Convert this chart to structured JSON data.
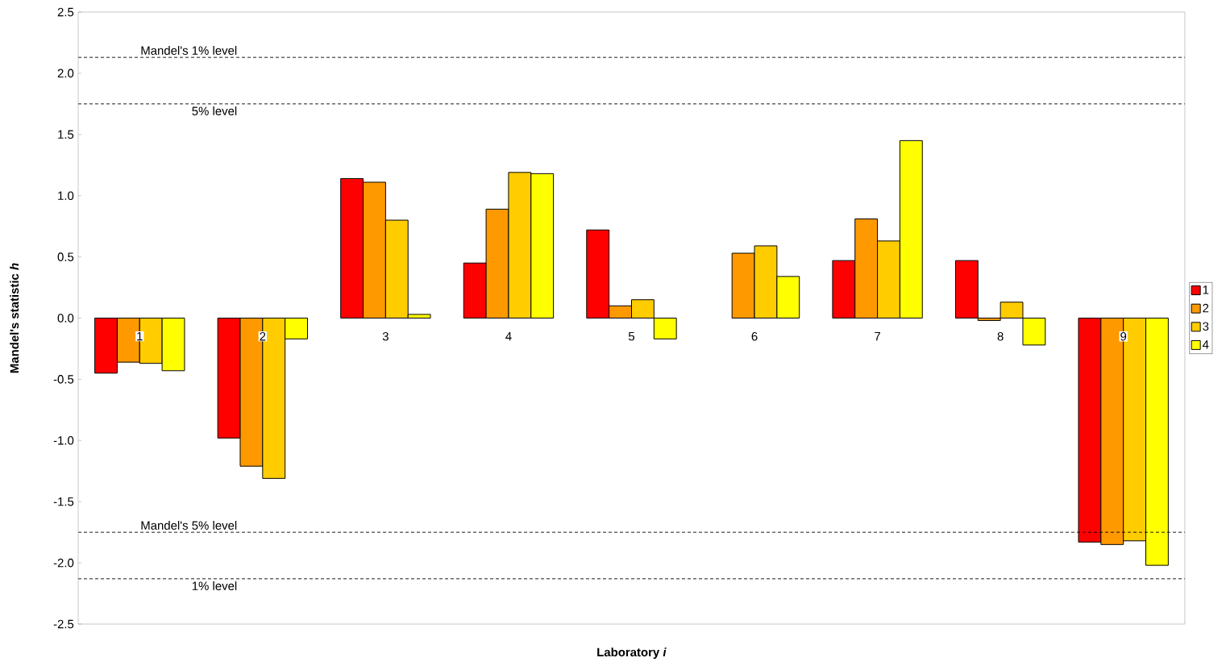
{
  "chart_data": {
    "type": "bar",
    "xlabel": "Laboratory *i*",
    "ylabel": "Mandel's statistic *h*",
    "categories": [
      "1",
      "2",
      "3",
      "4",
      "5",
      "6",
      "7",
      "8",
      "9"
    ],
    "series": [
      {
        "name": "1",
        "color": "#ff0000",
        "values": [
          -0.45,
          -0.98,
          1.14,
          0.45,
          0.72,
          null,
          0.47,
          0.47,
          -1.83
        ]
      },
      {
        "name": "2",
        "color": "#ff9900",
        "values": [
          -0.36,
          -1.21,
          1.11,
          0.89,
          0.1,
          0.53,
          0.81,
          -0.02,
          -1.85
        ]
      },
      {
        "name": "3",
        "color": "#ffcc00",
        "values": [
          -0.37,
          -1.31,
          0.8,
          1.19,
          0.15,
          0.59,
          0.63,
          0.13,
          -1.82
        ]
      },
      {
        "name": "4",
        "color": "#ffff00",
        "values": [
          -0.43,
          -0.17,
          0.03,
          1.18,
          -0.17,
          0.34,
          1.45,
          -0.22,
          -2.02
        ]
      }
    ],
    "ylim": [
      -2.5,
      2.5
    ],
    "yticks": [
      {
        "value": -2.5,
        "label": "-2.5"
      },
      {
        "value": -2,
        "label": "-2.0"
      },
      -1.5,
      {
        "value": -1,
        "label": "-1.0"
      },
      -0.5,
      {
        "value": 0,
        "label": "0.0"
      },
      0.5,
      {
        "value": 1,
        "label": "1.0"
      },
      1.5,
      {
        "value": 2,
        "label": "2.0"
      },
      2.5
    ],
    "ref_lines": [
      {
        "axis": "y",
        "value": 2.13,
        "label": "Mandel's 1% level",
        "color": "#000000",
        "line_style": "dashed"
      },
      {
        "axis": "y",
        "value": 1.75,
        "label": "5% level",
        "color": "#000000",
        "line_style": "dashed"
      },
      {
        "axis": "y",
        "value": -1.75,
        "label": "Mandel's 5% level",
        "color": "#000000",
        "line_style": "dashed"
      },
      {
        "axis": "y",
        "value": -2.13,
        "label": "1% level",
        "color": "#000000",
        "line_style": "dashed"
      }
    ],
    "grid": false,
    "legend": "right"
  }
}
